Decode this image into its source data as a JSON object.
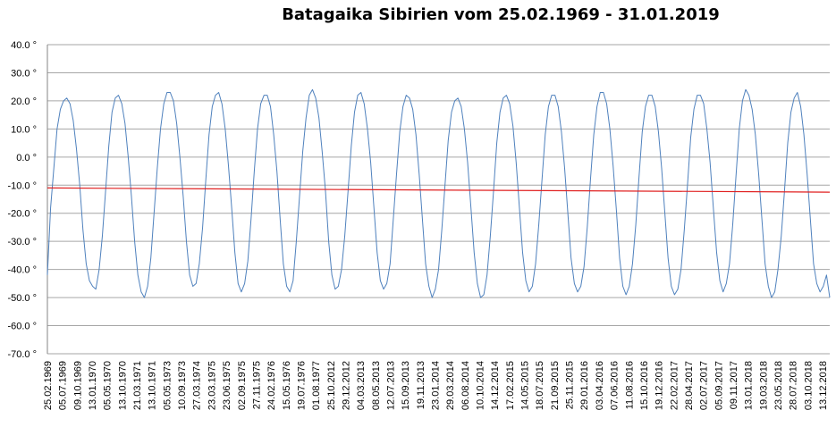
{
  "chart_data": {
    "type": "line",
    "title": "Batagaika Sibirien vom 25.02.1969  - 31.01.2019",
    "xlabel": "",
    "ylabel": "",
    "ylim": [
      -70,
      40
    ],
    "y_ticks": [
      40,
      30,
      20,
      10,
      0,
      -10,
      -20,
      -30,
      -40,
      -50,
      -60,
      -70
    ],
    "y_tick_labels": [
      "40.0 °",
      "30.0 °",
      "20.0 °",
      "10.0 °",
      "0.0 °",
      "-10.0 °",
      "-20.0 °",
      "-30.0 °",
      "-40.0 °",
      "-50.0 °",
      "-60.0 °",
      "-70.0 °"
    ],
    "grid": true,
    "legend": "none",
    "x_tick_labels": [
      "25.02.1969",
      "05.07.1969",
      "09.10.1969",
      "13.01.1970",
      "05.05.1970",
      "13.10.1970",
      "21.03.1971",
      "13.10.1971",
      "05.05.1973",
      "10.09.1973",
      "27.03.1974",
      "23.03.1975",
      "23.06.1975",
      "02.09.1975",
      "27.11.1975",
      "24.02.1976",
      "15.05.1976",
      "19.07.1976",
      "01.08.1977",
      "25.10.2012",
      "29.12.2012",
      "04.03.2013",
      "08.05.2013",
      "12.07.2013",
      "15.09.2013",
      "19.11.2013",
      "23.01.2014",
      "29.03.2014",
      "06.08.2014",
      "10.10.2014",
      "14.12.2014",
      "17.02.2015",
      "14.05.2015",
      "18.07.2015",
      "21.09.2015",
      "25.11.2015",
      "29.01.2016",
      "03.04.2016",
      "07.06.2016",
      "11.08.2016",
      "15.10.2016",
      "19.12.2016",
      "22.02.2017",
      "28.04.2017",
      "02.07.2017",
      "05.09.2017",
      "09.11.2017",
      "13.01.2018",
      "19.03.2018",
      "23.05.2018",
      "28.07.2018",
      "03.10.2018",
      "13.12.2018"
    ],
    "series": [
      {
        "color": "#4f81bd",
        "values": [
          -42,
          -18,
          -4,
          10,
          17,
          20,
          21,
          19,
          13,
          3,
          -10,
          -26,
          -38,
          -44,
          -46,
          -47,
          -40,
          -28,
          -12,
          4,
          16,
          21,
          22,
          19,
          12,
          0,
          -14,
          -30,
          -42,
          -48,
          -50,
          -46,
          -36,
          -20,
          -4,
          10,
          19,
          23,
          23,
          20,
          12,
          0,
          -14,
          -30,
          -42,
          -46,
          -45,
          -38,
          -25,
          -8,
          8,
          18,
          22,
          23,
          19,
          10,
          -3,
          -18,
          -34,
          -45,
          -48,
          -45,
          -37,
          -22,
          -5,
          10,
          19,
          22,
          22,
          18,
          8,
          -5,
          -22,
          -38,
          -46,
          -48,
          -44,
          -30,
          -14,
          2,
          14,
          22,
          24,
          21,
          14,
          2,
          -12,
          -30,
          -42,
          -47,
          -46,
          -40,
          -28,
          -12,
          4,
          16,
          22,
          23,
          19,
          10,
          -2,
          -18,
          -34,
          -44,
          -47,
          -45,
          -38,
          -22,
          -6,
          9,
          18,
          22,
          21,
          17,
          8,
          -6,
          -22,
          -38,
          -46,
          -50,
          -47,
          -40,
          -26,
          -10,
          6,
          16,
          20,
          21,
          18,
          10,
          -2,
          -18,
          -34,
          -45,
          -50,
          -49,
          -42,
          -28,
          -12,
          5,
          16,
          21,
          22,
          19,
          11,
          -2,
          -18,
          -34,
          -44,
          -48,
          -46,
          -38,
          -24,
          -8,
          8,
          18,
          22,
          22,
          18,
          9,
          -4,
          -20,
          -36,
          -45,
          -48,
          -46,
          -39,
          -25,
          -8,
          8,
          18,
          23,
          23,
          19,
          10,
          -3,
          -19,
          -36,
          -46,
          -49,
          -46,
          -38,
          -24,
          -7,
          9,
          18,
          22,
          22,
          18,
          9,
          -4,
          -20,
          -36,
          -46,
          -49,
          -47,
          -40,
          -26,
          -10,
          7,
          17,
          22,
          22,
          19,
          10,
          -2,
          -18,
          -34,
          -44,
          -48,
          -45,
          -38,
          -24,
          -7,
          10,
          20,
          24,
          22,
          17,
          8,
          -6,
          -22,
          -38,
          -46,
          -50,
          -48,
          -40,
          -28,
          -12,
          5,
          16,
          21,
          23,
          18,
          8,
          -6,
          -22,
          -38,
          -45,
          -48,
          -46,
          -42,
          -50
        ]
      },
      {
        "color": "#e02020",
        "values": [
          -11,
          -12.5
        ]
      }
    ]
  }
}
